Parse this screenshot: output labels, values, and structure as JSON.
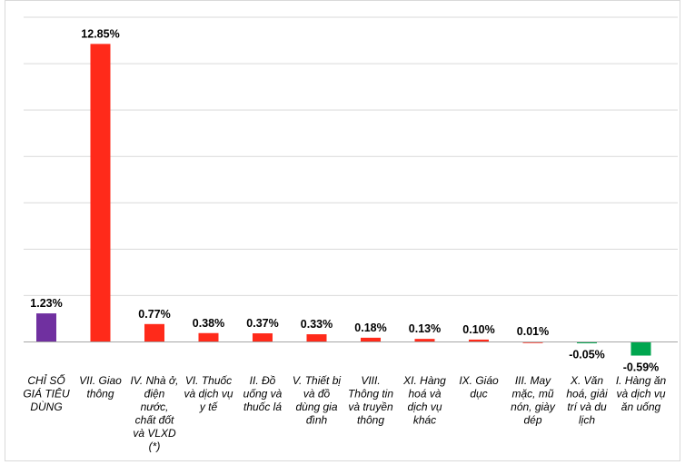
{
  "chart_data": {
    "type": "bar",
    "title": "",
    "xlabel": "",
    "ylabel": "",
    "ylim": [
      -1,
      14
    ],
    "grid": true,
    "legend": "none",
    "categories": [
      "CHỈ SỐ GIÁ TIÊU DÙNG",
      "VII. Giao thông",
      "IV. Nhà ở, điện nước, chất đốt và VLXD (*)",
      "VI. Thuốc và dịch vụ y tế",
      "II. Đồ uống và thuốc lá",
      "V. Thiết bị và đồ dùng gia đình",
      "VIII. Thông tin và truyền thông",
      "XI. Hàng hoá và dịch vụ khác",
      "IX. Giáo dục",
      "III. May mặc, mũ nón, giày dép",
      "X. Văn hoá, giải trí và du lịch",
      "I. Hàng ăn và dịch vụ ăn uống"
    ],
    "category_lines": [
      [
        "CHỈ SỐ",
        "GIÁ TIÊU",
        "DÙNG"
      ],
      [
        "VII. Giao",
        "thông"
      ],
      [
        "IV. Nhà ở,",
        "điện",
        "nước,",
        "chất đốt",
        "và VLXD",
        "(*)"
      ],
      [
        "VI. Thuốc",
        "và dịch vụ",
        "y tế"
      ],
      [
        "II. Đồ",
        "uống và",
        "thuốc lá"
      ],
      [
        "V. Thiết bị",
        "và đồ",
        "dùng gia",
        "đình"
      ],
      [
        "VIII.",
        "Thông tin",
        "và truyền",
        "thông"
      ],
      [
        "XI. Hàng",
        "hoá và",
        "dịch vụ",
        "khác"
      ],
      [
        "IX. Giáo",
        "dục"
      ],
      [
        "III. May",
        "mặc, mũ",
        "nón, giày",
        "dép"
      ],
      [
        "X. Văn",
        "hoá, giải",
        "trí và du",
        "lịch"
      ],
      [
        "I. Hàng ăn",
        "và dịch vụ",
        "ăn uống"
      ]
    ],
    "values": [
      1.23,
      12.85,
      0.77,
      0.38,
      0.37,
      0.33,
      0.18,
      0.13,
      0.1,
      0.01,
      -0.05,
      -0.59
    ],
    "value_labels": [
      "1.23%",
      "12.85%",
      "0.77%",
      "0.38%",
      "0.37%",
      "0.33%",
      "0.18%",
      "0.13%",
      "0.10%",
      "0.01%",
      "-0.05%",
      "-0.59%"
    ],
    "colors": [
      "#7030a0",
      "#ff2a1a",
      "#ff2a1a",
      "#ff2a1a",
      "#ff2a1a",
      "#ff2a1a",
      "#ff2a1a",
      "#ff2a1a",
      "#ff2a1a",
      "#ff2a1a",
      "#00a64f",
      "#00a64f"
    ]
  }
}
